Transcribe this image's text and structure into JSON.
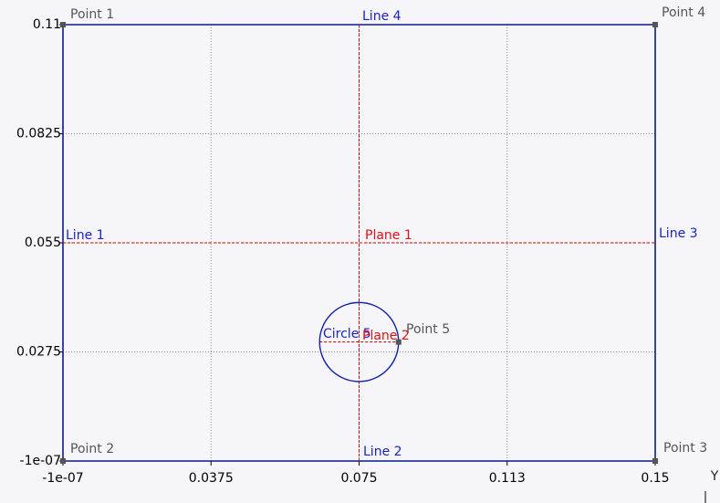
{
  "viewer": {
    "axis_label": "Y",
    "xlim": [
      -1e-07,
      0.15
    ],
    "ylim": [
      -1e-07,
      0.11
    ],
    "xticks": [
      {
        "value": -1e-07,
        "label": "-1e-07"
      },
      0.0375,
      0.075,
      {
        "value": 0.1125,
        "label": "0.113"
      },
      0.15
    ],
    "yticks": [
      {
        "value": -1e-07,
        "label": "-1e-07"
      },
      0.0275,
      0.055,
      0.0825,
      0.11
    ],
    "grid": true,
    "points": [
      {
        "name": "Point 1",
        "x": 0,
        "y": 0.11
      },
      {
        "name": "Point 2",
        "x": 0,
        "y": 0
      },
      {
        "name": "Point 3",
        "x": 0.15,
        "y": 0
      },
      {
        "name": "Point 4",
        "x": 0.15,
        "y": 0.11
      },
      {
        "name": "Point 5",
        "x": 0.085,
        "y": 0.03
      }
    ],
    "lines": [
      {
        "name": "Line 1"
      },
      {
        "name": "Line 2"
      },
      {
        "name": "Line 3"
      },
      {
        "name": "Line 4"
      }
    ],
    "circle": {
      "name": "Circle 5",
      "x": 0.075,
      "y": 0.03,
      "radius": 0.01
    },
    "planes": [
      {
        "name": "Plane 1",
        "y": 0.055
      },
      {
        "name": "Plane 2",
        "x": 0.075
      }
    ]
  }
}
